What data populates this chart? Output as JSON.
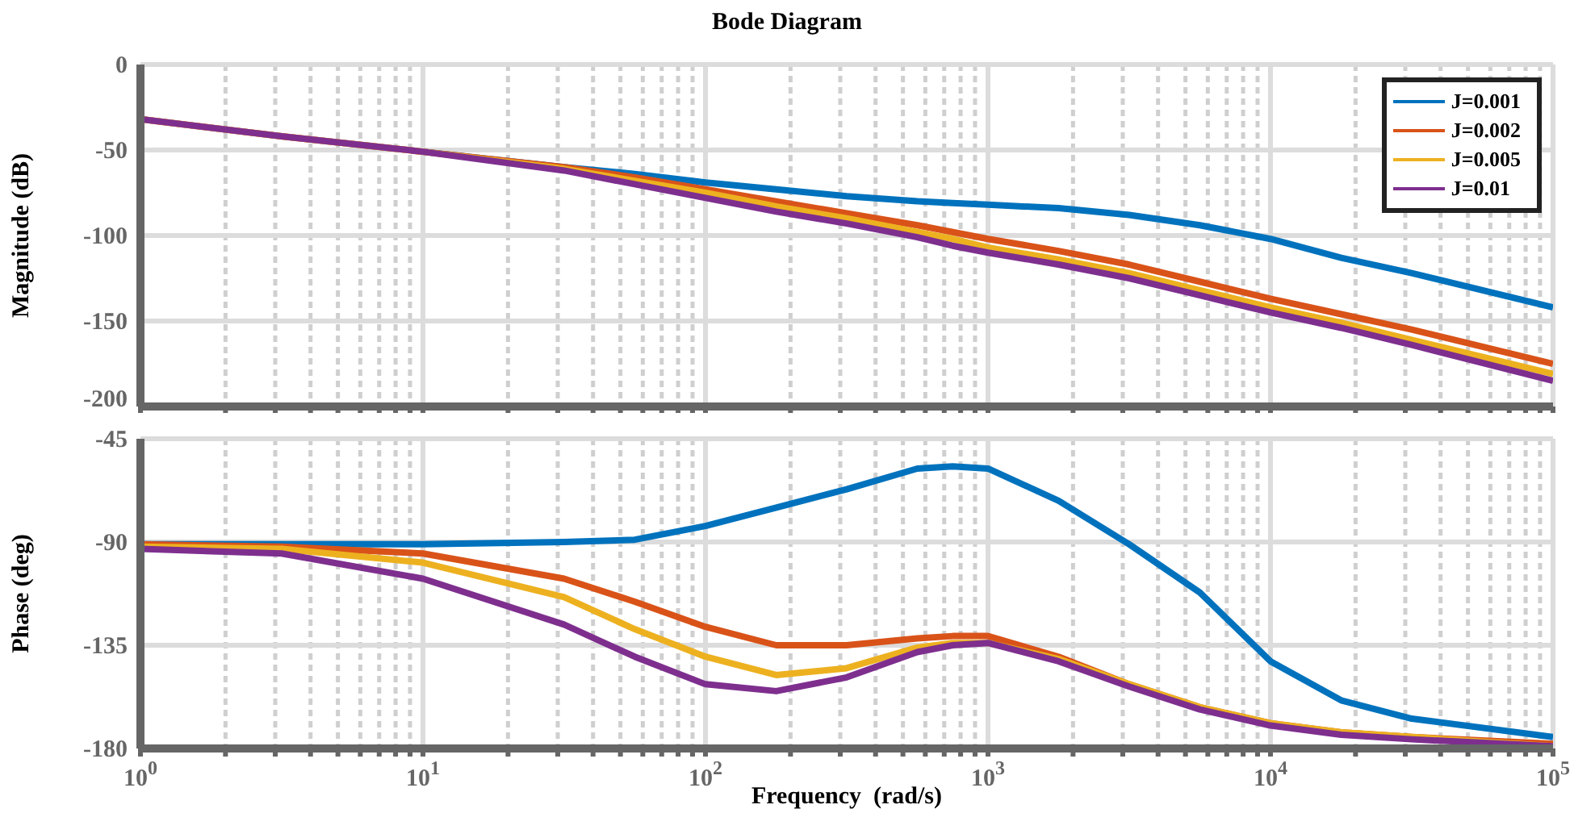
{
  "chart_data": [
    {
      "type": "line",
      "title": "Bode Diagram",
      "ylabel": "Magnitude (dB)",
      "log": "x",
      "grid": true,
      "legend": "top right",
      "tick_labels": "y",
      "x": [
        1,
        3.16,
        10,
        31.6,
        56.2,
        100,
        178,
        316,
        562,
        750,
        1000,
        1778,
        3162,
        5623,
        10000,
        17783,
        31623,
        100000
      ],
      "xlim": [
        1,
        100000
      ],
      "xticks": [
        {
          "value": 1,
          "label": null
        },
        {
          "value": 2,
          "label": null
        },
        {
          "value": 3,
          "label": null
        },
        {
          "value": 4,
          "label": null
        },
        {
          "value": 5,
          "label": null
        },
        {
          "value": 6,
          "label": null
        },
        {
          "value": 7,
          "label": null
        },
        {
          "value": 8,
          "label": null
        },
        {
          "value": 9,
          "label": null
        },
        {
          "value": 10,
          "label": null
        },
        {
          "value": 20,
          "label": null
        },
        {
          "value": 30,
          "label": null
        },
        {
          "value": 40,
          "label": null
        },
        {
          "value": 50,
          "label": null
        },
        {
          "value": 60,
          "label": null
        },
        {
          "value": 70,
          "label": null
        },
        {
          "value": 80,
          "label": null
        },
        {
          "value": 90,
          "label": null
        },
        {
          "value": 100,
          "label": null
        },
        {
          "value": 200,
          "label": null
        },
        {
          "value": 300,
          "label": null
        },
        {
          "value": 400,
          "label": null
        },
        {
          "value": 500,
          "label": null
        },
        {
          "value": 600,
          "label": null
        },
        {
          "value": 700,
          "label": null
        },
        {
          "value": 800,
          "label": null
        },
        {
          "value": 900,
          "label": null
        },
        {
          "value": 1000,
          "label": null
        },
        {
          "value": 2000,
          "label": null
        },
        {
          "value": 3000,
          "label": null
        },
        {
          "value": 4000,
          "label": null
        },
        {
          "value": 5000,
          "label": null
        },
        {
          "value": 6000,
          "label": null
        },
        {
          "value": 7000,
          "label": null
        },
        {
          "value": 8000,
          "label": null
        },
        {
          "value": 9000,
          "label": null
        },
        {
          "value": 10000,
          "label": null
        },
        {
          "value": 20000,
          "label": null
        },
        {
          "value": 30000,
          "label": null
        },
        {
          "value": 40000,
          "label": null
        },
        {
          "value": 50000,
          "label": null
        },
        {
          "value": 60000,
          "label": null
        },
        {
          "value": 70000,
          "label": null
        },
        {
          "value": 80000,
          "label": null
        },
        {
          "value": 90000,
          "label": null
        },
        {
          "value": 100000,
          "label": null
        }
      ],
      "ylim": [
        -200,
        0
      ],
      "yticks": [
        -200,
        -150,
        -100,
        -50,
        0
      ],
      "series": [
        {
          "name": "J=0.001",
          "color": "#0072bd",
          "values": [
            null,
            null,
            -51,
            -60,
            -64,
            -69,
            -73,
            -77,
            -80,
            -81,
            -82,
            -84,
            -88,
            -94,
            -102,
            -113,
            -122,
            -142
          ]
        },
        {
          "name": "J=0.002",
          "color": "#d95319",
          "values": [
            -32,
            -42,
            -51,
            -60,
            -66,
            -73,
            -80,
            -87,
            -94,
            -98,
            -102,
            -109,
            -117,
            -127,
            -137,
            -146,
            -155,
            -175
          ]
        },
        {
          "name": "J=0.005",
          "color": "#edb120",
          "values": [
            -32,
            -42,
            -51,
            -61,
            -68,
            -75,
            -83,
            -90,
            -98,
            -102,
            -107,
            -114,
            -122,
            -132,
            -142,
            -151,
            -161,
            -181
          ]
        },
        {
          "name": "J=0.01",
          "color": "#7e2f8e",
          "values": [
            -32,
            -42,
            -51,
            -62,
            -70,
            -78,
            -86,
            -93,
            -101,
            -106,
            -110,
            -117,
            -125,
            -135,
            -145,
            -154,
            -164,
            -185
          ]
        }
      ]
    },
    {
      "type": "line",
      "ylabel": "Phase (deg)",
      "xlabel": "Frequency  (rad/s)",
      "log": "x",
      "grid": true,
      "x": [
        1,
        3.16,
        10,
        31.6,
        56.2,
        100,
        178,
        316,
        562,
        750,
        1000,
        1778,
        3162,
        5623,
        10000,
        17783,
        31623,
        100000
      ],
      "xlim": [
        1,
        100000
      ],
      "xticks": [
        {
          "value": 1,
          "label": "10$^{0}$"
        },
        {
          "value": 2,
          "label": null
        },
        {
          "value": 3,
          "label": null
        },
        {
          "value": 4,
          "label": null
        },
        {
          "value": 5,
          "label": null
        },
        {
          "value": 6,
          "label": null
        },
        {
          "value": 7,
          "label": null
        },
        {
          "value": 8,
          "label": null
        },
        {
          "value": 9,
          "label": null
        },
        {
          "value": 10,
          "label": "10$^{1}$"
        },
        {
          "value": 20,
          "label": null
        },
        {
          "value": 30,
          "label": null
        },
        {
          "value": 40,
          "label": null
        },
        {
          "value": 50,
          "label": null
        },
        {
          "value": 60,
          "label": null
        },
        {
          "value": 70,
          "label": null
        },
        {
          "value": 80,
          "label": null
        },
        {
          "value": 90,
          "label": null
        },
        {
          "value": 100,
          "label": "10$^{2}$"
        },
        {
          "value": 200,
          "label": null
        },
        {
          "value": 300,
          "label": null
        },
        {
          "value": 400,
          "label": null
        },
        {
          "value": 500,
          "label": null
        },
        {
          "value": 600,
          "label": null
        },
        {
          "value": 700,
          "label": null
        },
        {
          "value": 800,
          "label": null
        },
        {
          "value": 900,
          "label": null
        },
        {
          "value": 1000,
          "label": "10$^{3}$"
        },
        {
          "value": 2000,
          "label": null
        },
        {
          "value": 3000,
          "label": null
        },
        {
          "value": 4000,
          "label": null
        },
        {
          "value": 5000,
          "label": null
        },
        {
          "value": 6000,
          "label": null
        },
        {
          "value": 7000,
          "label": null
        },
        {
          "value": 8000,
          "label": null
        },
        {
          "value": 9000,
          "label": null
        },
        {
          "value": 10000,
          "label": "10$^{4}$"
        },
        {
          "value": 20000,
          "label": null
        },
        {
          "value": 30000,
          "label": null
        },
        {
          "value": 40000,
          "label": null
        },
        {
          "value": 50000,
          "label": null
        },
        {
          "value": 60000,
          "label": null
        },
        {
          "value": 70000,
          "label": null
        },
        {
          "value": 80000,
          "label": null
        },
        {
          "value": 90000,
          "label": null
        },
        {
          "value": 100000,
          "label": "10$^{5}$"
        }
      ],
      "ylim": [
        -180,
        -45
      ],
      "yticks": [
        -180,
        -135,
        -90,
        -45
      ],
      "series": [
        {
          "color": "#0072bd",
          "values": [
            -91,
            -91,
            -91,
            -90,
            -89,
            -83,
            -75,
            -67,
            -58,
            -57,
            -58,
            -72,
            -91,
            -112,
            -142,
            -159,
            -167,
            -175
          ]
        },
        {
          "color": "#d95319",
          "values": [
            -91,
            -92,
            -95,
            -106,
            -116,
            -127,
            -135,
            -135,
            -132,
            -131,
            -131,
            -140,
            -152,
            -162,
            -169,
            -173,
            -175,
            -178
          ]
        },
        {
          "color": "#edb120",
          "values": [
            -92,
            -93,
            -99,
            -114,
            -128,
            -140,
            -148,
            -145,
            -136,
            -134,
            -134,
            -141,
            -152,
            -162,
            -169,
            -173,
            -175,
            -179
          ]
        },
        {
          "color": "#7e2f8e",
          "values": [
            -93,
            -95,
            -106,
            -126,
            -140,
            -152,
            -155,
            -149,
            -138,
            -135,
            -134,
            -142,
            -153,
            -163,
            -170,
            -174,
            -176,
            -179
          ]
        }
      ]
    }
  ]
}
